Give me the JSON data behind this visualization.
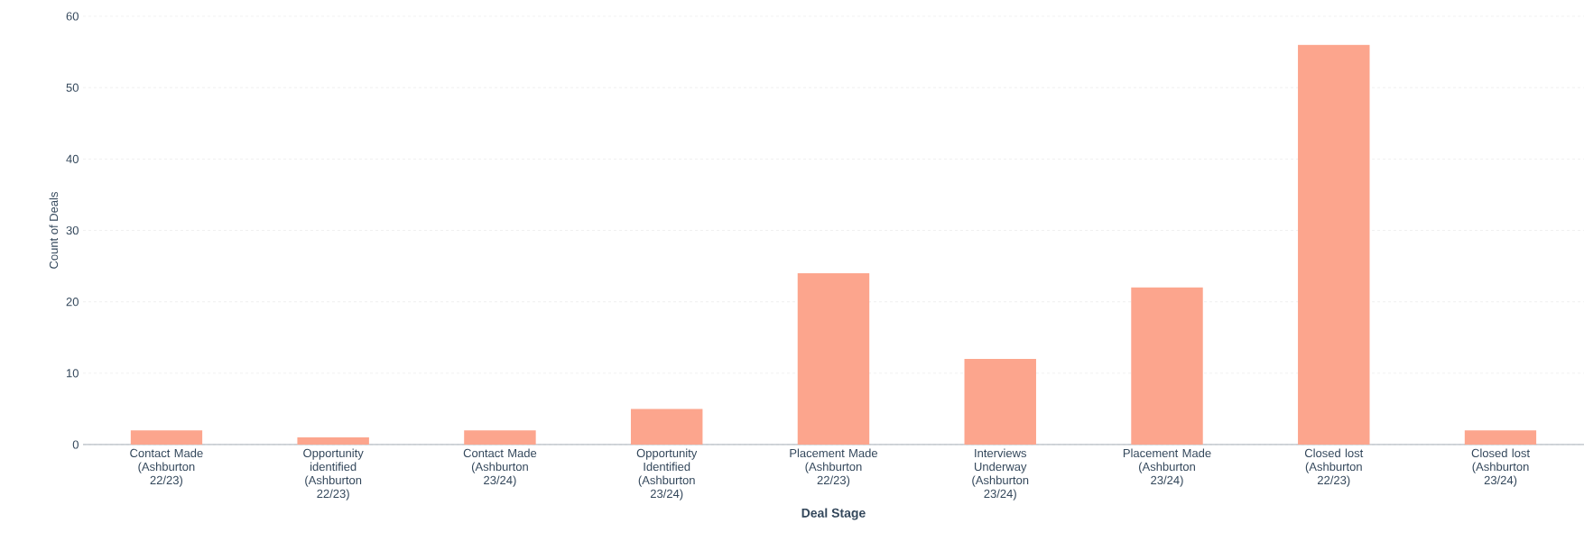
{
  "chart_data": {
    "type": "bar",
    "xlabel": "Deal Stage",
    "ylabel": "Count of Deals",
    "categories": [
      "Contact Made (Ashburton 22/23)",
      "Opportunity identified (Ashburton 22/23)",
      "Contact Made (Ashburton 23/24)",
      "Opportunity Identified (Ashburton 23/24)",
      "Placement Made (Ashburton 22/23)",
      "Interviews Underway (Ashburton 23/24)",
      "Placement Made (Ashburton 23/24)",
      "Closed lost (Ashburton 22/23)",
      "Closed lost (Ashburton 23/24)"
    ],
    "values": [
      2,
      1,
      2,
      5,
      24,
      12,
      22,
      56,
      2
    ],
    "color": "#fca58d",
    "ylim": [
      0,
      60
    ],
    "yticks": [
      0,
      10,
      20,
      30,
      40,
      50,
      60
    ],
    "grid": "y"
  }
}
